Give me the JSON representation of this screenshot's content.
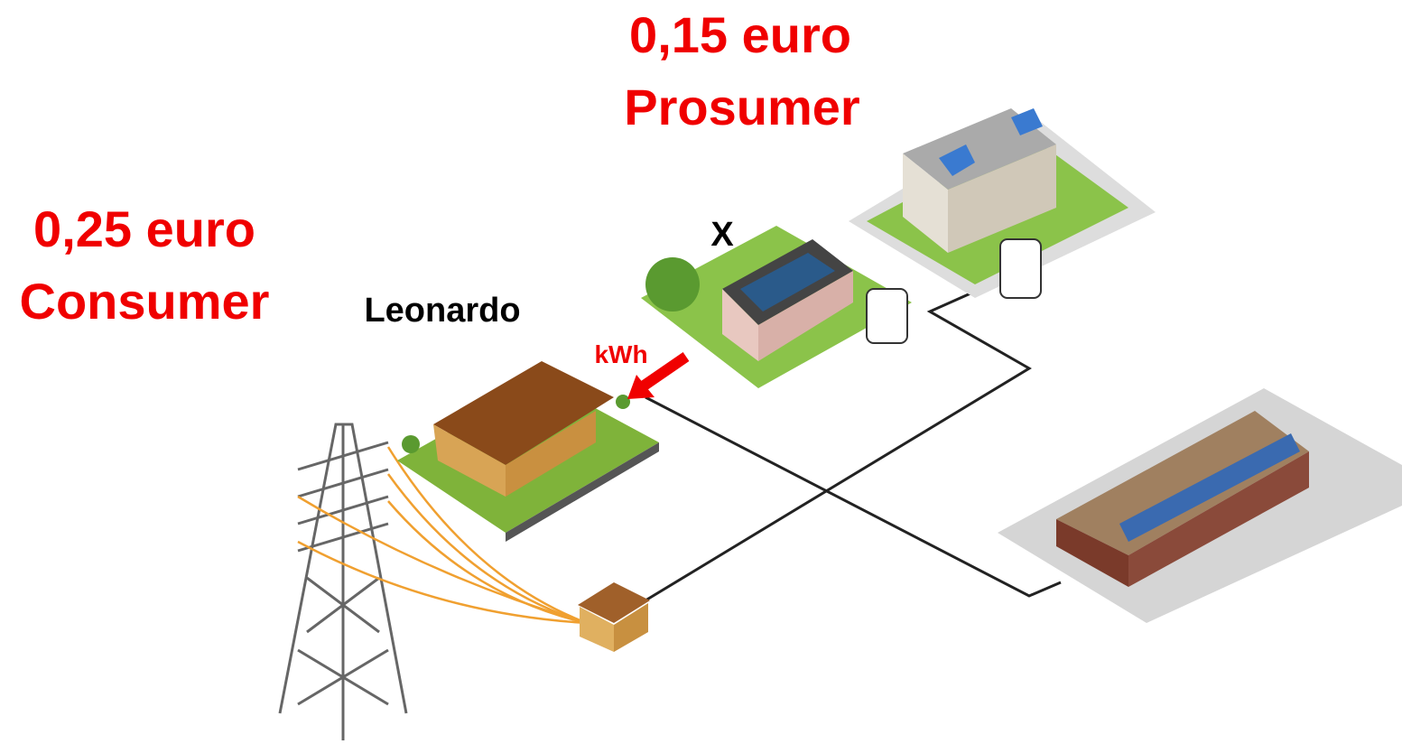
{
  "prosumer": {
    "price": "0,15 euro",
    "role": "Prosumer",
    "name": "X"
  },
  "consumer": {
    "price": "0,25 euro",
    "role": "Consumer",
    "name": "Leonardo"
  },
  "flow": {
    "label": "kWh"
  }
}
